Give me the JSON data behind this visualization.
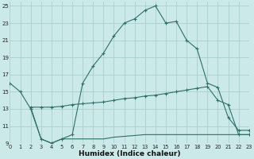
{
  "xlabel": "Humidex (Indice chaleur)",
  "background_color": "#cce9e9",
  "grid_color": "#aacfcf",
  "line_color": "#2d7068",
  "xlim": [
    0,
    23
  ],
  "ylim": [
    9,
    25.5
  ],
  "xticks": [
    0,
    1,
    2,
    3,
    4,
    5,
    6,
    7,
    8,
    9,
    10,
    11,
    12,
    13,
    14,
    15,
    16,
    17,
    18,
    19,
    20,
    21,
    22,
    23
  ],
  "yticks": [
    9,
    11,
    13,
    15,
    17,
    19,
    21,
    23,
    25
  ],
  "series1_x": [
    0,
    1,
    2,
    3,
    4,
    5,
    6,
    7,
    8,
    9,
    10,
    11,
    12,
    13,
    14,
    15,
    16,
    17,
    18,
    19,
    20,
    21,
    22,
    23
  ],
  "series1_y": [
    16.0,
    15.0,
    13.0,
    9.5,
    9.0,
    9.5,
    10.0,
    16.0,
    18.0,
    19.5,
    21.5,
    23.0,
    23.5,
    24.5,
    25.0,
    23.0,
    23.2,
    21.0,
    20.0,
    16.0,
    15.5,
    12.0,
    10.5,
    10.5
  ],
  "series2_x": [
    2,
    3,
    4,
    5,
    6,
    7,
    8,
    9,
    10,
    11,
    12,
    13,
    14,
    15,
    16,
    17,
    18,
    19,
    20,
    21,
    22,
    23
  ],
  "series2_y": [
    13.2,
    13.2,
    13.2,
    13.3,
    13.5,
    13.6,
    13.7,
    13.8,
    14.0,
    14.2,
    14.3,
    14.5,
    14.6,
    14.8,
    15.0,
    15.2,
    15.4,
    15.6,
    14.0,
    13.5,
    10.0,
    10.0
  ],
  "series3_x": [
    2,
    3,
    4,
    5,
    6,
    7,
    8,
    9,
    10,
    11,
    12,
    13,
    14,
    15,
    16,
    17,
    18,
    19,
    20,
    21,
    22,
    23
  ],
  "series3_y": [
    13.2,
    9.5,
    9.0,
    9.5,
    9.5,
    9.5,
    9.5,
    9.5,
    9.7,
    9.8,
    9.9,
    10.0,
    10.0,
    10.0,
    10.0,
    10.0,
    10.0,
    10.0,
    10.0,
    10.0,
    10.0,
    10.0
  ]
}
